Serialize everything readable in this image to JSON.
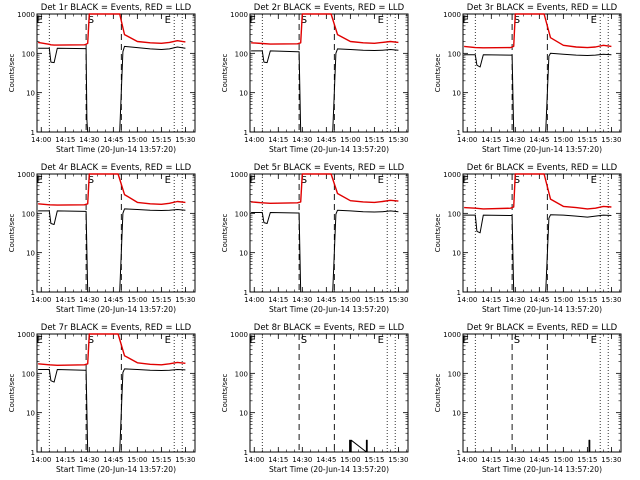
{
  "colors": {
    "events": "#000000",
    "lld": "#e00000",
    "axis": "#000000",
    "background": "#ffffff"
  },
  "shared": {
    "xlabel": "Start Time (20-Jun-14 13:57:20)",
    "ylabel": "Counts/sec",
    "xticks": [
      "14:00",
      "14:15",
      "14:30",
      "14:45",
      "15:00",
      "15:15",
      "15:30"
    ],
    "yticks": [
      "1",
      "10",
      "100",
      "1000"
    ],
    "marker_labels": {
      "eclipse": "E",
      "saa": "S"
    }
  },
  "chart_data": [
    {
      "type": "line",
      "title": "Det 1r BLACK = Events, RED = LLD",
      "yscale": "log",
      "ylim": [
        1,
        1000
      ],
      "xlim": [
        "13:57:20",
        "15:36:00"
      ],
      "markers": [
        {
          "label": "E",
          "x": "13:59"
        },
        {
          "label": "S",
          "x": "14:31"
        },
        {
          "label": "E",
          "x": "15:19"
        }
      ],
      "series": [
        {
          "x": [
            "13:58",
            "14:05",
            "14:06",
            "14:08",
            "14:10",
            "14:27",
            "14:28",
            "14:29",
            "14:30",
            "14:35",
            "14:38",
            "14:49",
            "14:52",
            "15:00",
            "15:08",
            "15:15",
            "15:20",
            "15:25",
            "15:30"
          ],
          "y": [
            190,
            170,
            165,
            162,
            162,
            165,
            170,
            180,
            1000,
            1000,
            1000,
            1000,
            300,
            200,
            185,
            180,
            190,
            210,
            195
          ]
        },
        {
          "x": [
            "13:58",
            "14:05",
            "14:06",
            "14:08",
            "14:10",
            "14:27",
            "14:28",
            "14:28.5",
            "14:29",
            "14:49",
            "14:51",
            "14:52",
            "15:00",
            "15:08",
            "15:15",
            "15:20",
            "15:25",
            "15:30"
          ],
          "y": [
            135,
            135,
            60,
            58,
            135,
            132,
            132,
            2,
            0.9,
            0.9,
            110,
            150,
            140,
            130,
            125,
            130,
            145,
            135
          ]
        }
      ]
    },
    {
      "type": "line",
      "title": "Det 2r BLACK = Events, RED = LLD",
      "yscale": "log",
      "ylim": [
        1,
        1000
      ],
      "xlim": [
        "13:57:20",
        "15:36:00"
      ],
      "markers": [
        {
          "label": "E",
          "x": "13:59"
        },
        {
          "label": "S",
          "x": "14:31"
        },
        {
          "label": "E",
          "x": "15:19"
        }
      ],
      "series": [
        {
          "x": [
            "13:58",
            "14:05",
            "14:10",
            "14:27",
            "14:29",
            "14:30",
            "14:35",
            "14:48",
            "14:52",
            "15:00",
            "15:08",
            "15:15",
            "15:20",
            "15:25",
            "15:30"
          ],
          "y": [
            185,
            178,
            172,
            175,
            185,
            1000,
            1000,
            1000,
            300,
            200,
            185,
            180,
            190,
            200,
            190
          ]
        },
        {
          "x": [
            "13:58",
            "14:05",
            "14:06",
            "14:08",
            "14:10",
            "14:27",
            "14:28",
            "14:29",
            "14:49",
            "14:51",
            "14:52",
            "15:00",
            "15:08",
            "15:15",
            "15:20",
            "15:25",
            "15:30"
          ],
          "y": [
            115,
            115,
            60,
            58,
            115,
            110,
            110,
            0.9,
            0.9,
            100,
            130,
            125,
            120,
            118,
            120,
            125,
            120
          ]
        }
      ]
    },
    {
      "type": "line",
      "title": "Det 3r BLACK = Events, RED = LLD",
      "yscale": "log",
      "ylim": [
        1,
        1000
      ],
      "xlim": [
        "13:57:20",
        "15:36:00"
      ],
      "markers": [
        {
          "label": "E",
          "x": "13:59"
        },
        {
          "label": "S",
          "x": "14:31"
        },
        {
          "label": "E",
          "x": "15:19"
        }
      ],
      "series": [
        {
          "x": [
            "13:58",
            "14:05",
            "14:10",
            "14:27",
            "14:29",
            "14:30",
            "14:35",
            "14:48",
            "14:52",
            "15:00",
            "15:08",
            "15:15",
            "15:20",
            "15:25",
            "15:30"
          ],
          "y": [
            150,
            140,
            138,
            140,
            150,
            1000,
            1000,
            1000,
            250,
            160,
            145,
            140,
            145,
            160,
            150
          ]
        },
        {
          "x": [
            "13:58",
            "14:05",
            "14:06",
            "14:08",
            "14:10",
            "14:27",
            "14:28",
            "14:29",
            "14:49",
            "14:51",
            "14:52",
            "15:00",
            "15:08",
            "15:15",
            "15:20",
            "15:25",
            "15:30"
          ],
          "y": [
            92,
            92,
            50,
            45,
            92,
            90,
            90,
            0.9,
            0.9,
            85,
            100,
            95,
            90,
            88,
            90,
            95,
            92
          ]
        }
      ]
    },
    {
      "type": "line",
      "title": "Det 4r BLACK = Events, RED = LLD",
      "yscale": "log",
      "ylim": [
        1,
        1000
      ],
      "xlim": [
        "13:57:20",
        "15:36:00"
      ],
      "markers": [
        {
          "label": "E",
          "x": "13:59"
        },
        {
          "label": "S",
          "x": "14:31"
        },
        {
          "label": "E",
          "x": "15:19"
        }
      ],
      "series": [
        {
          "x": [
            "13:58",
            "14:05",
            "14:10",
            "14:27",
            "14:29",
            "14:30",
            "14:35",
            "14:48",
            "14:52",
            "15:00",
            "15:08",
            "15:15",
            "15:20",
            "15:25",
            "15:30"
          ],
          "y": [
            175,
            165,
            162,
            165,
            175,
            1000,
            1000,
            1000,
            300,
            190,
            175,
            170,
            180,
            200,
            190
          ]
        },
        {
          "x": [
            "13:58",
            "14:05",
            "14:06",
            "14:08",
            "14:10",
            "14:27",
            "14:28",
            "14:29",
            "14:49",
            "14:51",
            "14:52",
            "15:00",
            "15:08",
            "15:15",
            "15:20",
            "15:25",
            "15:30"
          ],
          "y": [
            115,
            115,
            55,
            52,
            115,
            112,
            112,
            0.9,
            0.9,
            100,
            130,
            125,
            120,
            118,
            120,
            125,
            120
          ]
        }
      ]
    },
    {
      "type": "line",
      "title": "Det 5r BLACK = Events, RED = LLD",
      "yscale": "log",
      "ylim": [
        1,
        1000
      ],
      "xlim": [
        "13:57:20",
        "15:36:00"
      ],
      "markers": [
        {
          "label": "E",
          "x": "13:59"
        },
        {
          "label": "S",
          "x": "14:31"
        },
        {
          "label": "E",
          "x": "15:19"
        }
      ],
      "series": [
        {
          "x": [
            "13:58",
            "14:05",
            "14:10",
            "14:27",
            "14:29",
            "14:30",
            "14:35",
            "14:48",
            "14:52",
            "15:00",
            "15:08",
            "15:15",
            "15:20",
            "15:25",
            "15:30"
          ],
          "y": [
            195,
            185,
            180,
            185,
            195,
            1000,
            1000,
            1000,
            320,
            210,
            195,
            190,
            200,
            215,
            205
          ]
        },
        {
          "x": [
            "13:58",
            "14:05",
            "14:06",
            "14:08",
            "14:10",
            "14:27",
            "14:28",
            "14:29",
            "14:49",
            "14:51",
            "14:52",
            "15:00",
            "15:08",
            "15:15",
            "15:20",
            "15:25",
            "15:30"
          ],
          "y": [
            105,
            105,
            58,
            55,
            105,
            102,
            102,
            0.9,
            0.9,
            95,
            120,
            115,
            110,
            108,
            110,
            115,
            110
          ]
        }
      ]
    },
    {
      "type": "line",
      "title": "Det 6r BLACK = Events, RED = LLD",
      "yscale": "log",
      "ylim": [
        1,
        1000
      ],
      "xlim": [
        "13:57:20",
        "15:36:00"
      ],
      "markers": [
        {
          "label": "E",
          "x": "13:59"
        },
        {
          "label": "S",
          "x": "14:31"
        },
        {
          "label": "E",
          "x": "15:19"
        }
      ],
      "series": [
        {
          "x": [
            "13:58",
            "14:05",
            "14:10",
            "14:27",
            "14:29",
            "14:30",
            "14:35",
            "14:48",
            "14:52",
            "15:00",
            "15:08",
            "15:15",
            "15:20",
            "15:25",
            "15:30"
          ],
          "y": [
            140,
            135,
            130,
            135,
            145,
            1000,
            1000,
            1000,
            230,
            150,
            140,
            130,
            135,
            150,
            145
          ]
        },
        {
          "x": [
            "13:58",
            "14:05",
            "14:06",
            "14:08",
            "14:10",
            "14:27",
            "14:28",
            "14:29",
            "14:49",
            "14:51",
            "14:52",
            "15:00",
            "15:08",
            "15:15",
            "15:20",
            "15:25",
            "15:30"
          ],
          "y": [
            90,
            90,
            35,
            32,
            90,
            88,
            88,
            0.9,
            0.9,
            75,
            92,
            90,
            85,
            80,
            85,
            90,
            88
          ]
        }
      ]
    },
    {
      "type": "line",
      "title": "Det 7r BLACK = Events, RED = LLD",
      "yscale": "log",
      "ylim": [
        1,
        1000
      ],
      "xlim": [
        "13:57:20",
        "15:36:00"
      ],
      "markers": [
        {
          "label": "E",
          "x": "13:59"
        },
        {
          "label": "S",
          "x": "14:31"
        },
        {
          "label": "E",
          "x": "15:19"
        }
      ],
      "series": [
        {
          "x": [
            "13:58",
            "14:05",
            "14:10",
            "14:27",
            "14:29",
            "14:30",
            "14:35",
            "14:48",
            "14:52",
            "15:00",
            "15:08",
            "15:15",
            "15:20",
            "15:25",
            "15:30"
          ],
          "y": [
            175,
            165,
            160,
            165,
            175,
            1000,
            1000,
            1000,
            280,
            185,
            170,
            165,
            175,
            190,
            180
          ]
        },
        {
          "x": [
            "13:58",
            "14:05",
            "14:06",
            "14:08",
            "14:10",
            "14:27",
            "14:28",
            "14:29",
            "14:49",
            "14:51",
            "14:52",
            "15:00",
            "15:08",
            "15:15",
            "15:20",
            "15:25",
            "15:30"
          ],
          "y": [
            125,
            125,
            65,
            60,
            125,
            120,
            120,
            0.9,
            0.9,
            105,
            130,
            125,
            120,
            118,
            120,
            125,
            122
          ]
        }
      ]
    },
    {
      "type": "line",
      "title": "Det 8r BLACK = Events, RED = LLD",
      "yscale": "log",
      "ylim": [
        1,
        1000
      ],
      "xlim": [
        "13:57:20",
        "15:36:00"
      ],
      "markers": [
        {
          "label": "E",
          "x": "13:59"
        },
        {
          "label": "S",
          "x": "14:31"
        },
        {
          "label": "E",
          "x": "15:19"
        }
      ],
      "series": [
        {
          "x": [],
          "y": []
        },
        {
          "x": [
            "14:59.5",
            "14:59.5",
            "15:00",
            "15:00",
            "15:00.5",
            "15:00.5",
            "15:10",
            "15:10",
            "15:10.5",
            "15:10.5"
          ],
          "y": [
            0.9,
            2,
            2,
            0.9,
            0.9,
            2,
            0.9,
            2,
            2,
            0.9
          ]
        }
      ]
    },
    {
      "type": "line",
      "title": "Det 9r BLACK = Events, RED = LLD",
      "yscale": "log",
      "ylim": [
        1,
        1000
      ],
      "xlim": [
        "13:57:20",
        "15:36:00"
      ],
      "markers": [
        {
          "label": "E",
          "x": "13:59"
        },
        {
          "label": "S",
          "x": "14:31"
        },
        {
          "label": "E",
          "x": "15:19"
        }
      ],
      "series": [
        {
          "x": [],
          "y": []
        },
        {
          "x": [
            "15:16",
            "15:16",
            "15:16.5",
            "15:16.5"
          ],
          "y": [
            0.9,
            2,
            2,
            0.9
          ]
        }
      ]
    }
  ]
}
